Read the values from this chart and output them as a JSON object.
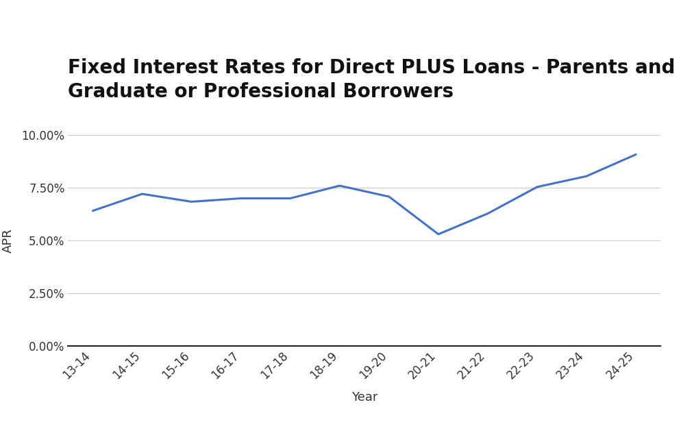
{
  "title_line1": "Fixed Interest Rates for Direct PLUS Loans - Parents and",
  "title_line2": "Graduate or Professional Borrowers",
  "xlabel": "Year",
  "ylabel": "APR",
  "categories": [
    "13-14",
    "14-15",
    "15-16",
    "16-17",
    "17-18",
    "18-19",
    "19-20",
    "20-21",
    "21-22",
    "22-23",
    "23-24",
    "24-25"
  ],
  "values": [
    6.41,
    7.21,
    6.84,
    7.0,
    7.0,
    7.6,
    7.08,
    5.3,
    6.28,
    7.54,
    8.05,
    9.08
  ],
  "line_color": "#4472C4",
  "line_width": 2.2,
  "ylim": [
    0.0,
    10.0
  ],
  "yticks": [
    0.0,
    2.5,
    5.0,
    7.5,
    10.0
  ],
  "ytick_labels": [
    "0.00%",
    "2.50%",
    "5.00%",
    "7.50%",
    "10.00%"
  ],
  "title_fontsize": 20,
  "axis_label_fontsize": 13,
  "tick_fontsize": 12,
  "background_color": "#ffffff",
  "grid_color": "#cccccc"
}
